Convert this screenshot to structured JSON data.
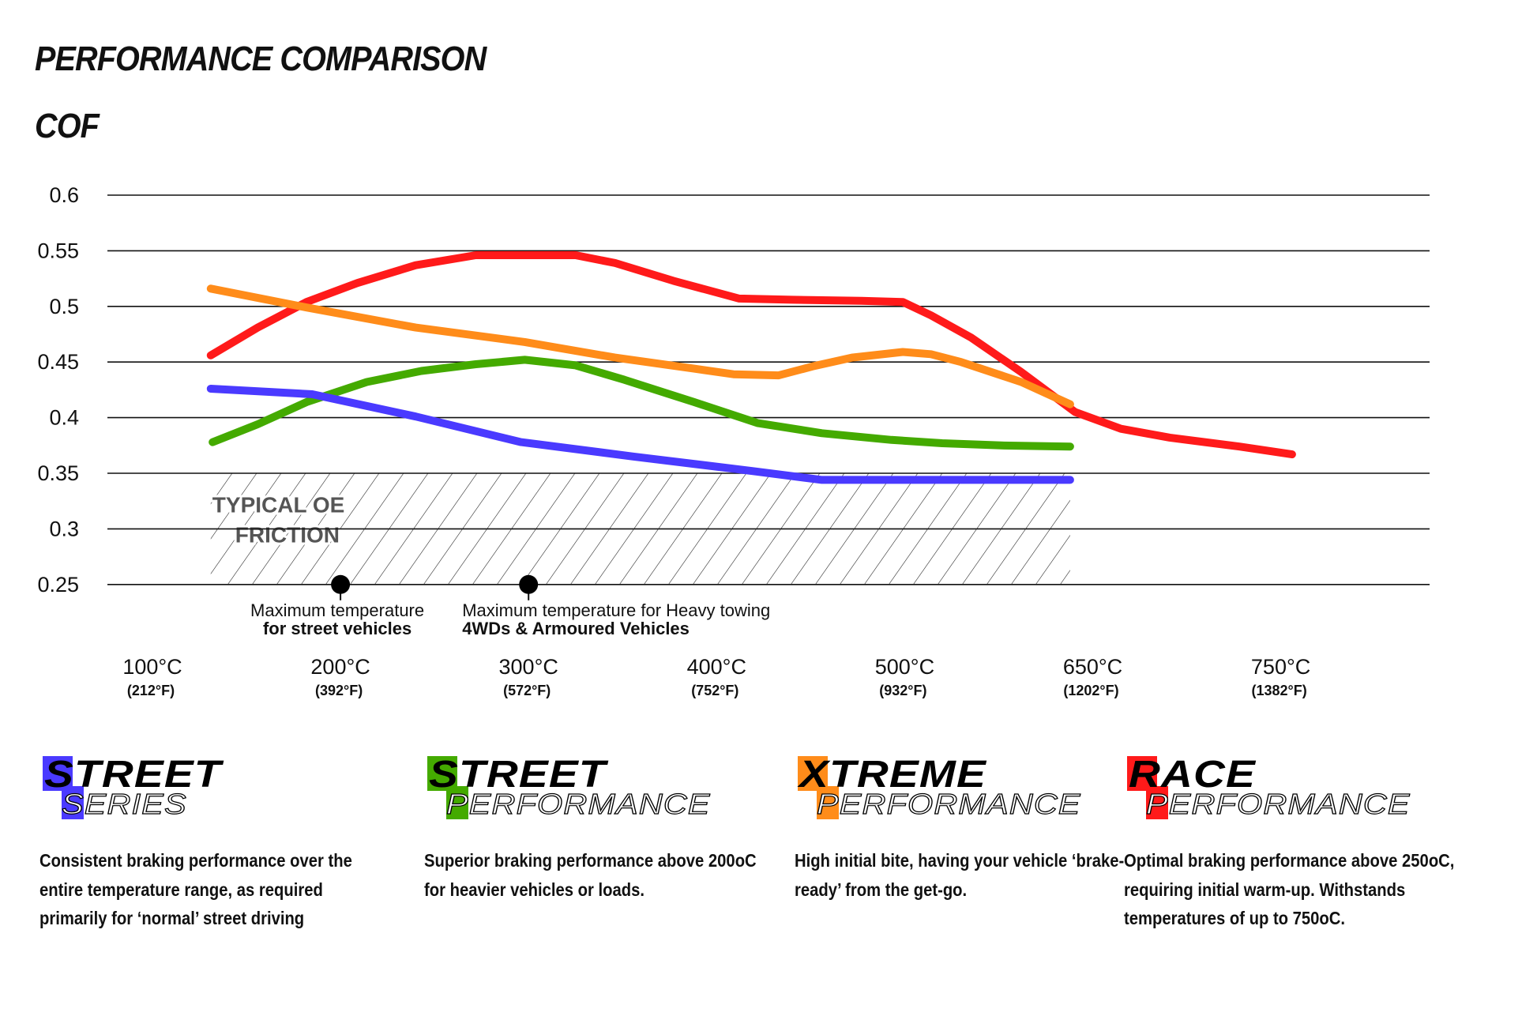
{
  "header": {
    "title": "PERFORMANCE COMPARISON",
    "subtitle": "COF"
  },
  "chart_data": {
    "type": "line",
    "title": "PERFORMANCE COMPARISON",
    "ylabel": "COF",
    "ylim": [
      0.25,
      0.6
    ],
    "yticks": [
      0.6,
      0.55,
      0.5,
      0.45,
      0.4,
      0.35,
      0.3,
      0.25
    ],
    "ytick_labels": [
      "0.6",
      "0.55",
      "0.5",
      "0.45",
      "0.4",
      "0.35",
      "0.3",
      "0.25"
    ],
    "grid": "horizontal",
    "x_unit": "°C",
    "xticks": [
      100,
      200,
      300,
      400,
      500,
      650,
      750
    ],
    "xtick_labels": [
      {
        "c": "100°C",
        "f": "(212°F)"
      },
      {
        "c": "200°C",
        "f": "(392°F)"
      },
      {
        "c": "300°C",
        "f": "(572°F)"
      },
      {
        "c": "400°C",
        "f": "(752°F)"
      },
      {
        "c": "500°C",
        "f": "(932°F)"
      },
      {
        "c": "650°C",
        "f": "(1202°F)"
      },
      {
        "c": "750°C",
        "f": "(1382°F)"
      }
    ],
    "series": [
      {
        "color": "#ff1a1a",
        "x": [
          131,
          156,
          182,
          209,
          240,
          272,
          303,
          325,
          346,
          377,
          412,
          440,
          477,
          499,
          521,
          553,
          593,
          636,
          665,
          691,
          728,
          756
        ],
        "y": [
          0.456,
          0.481,
          0.504,
          0.521,
          0.537,
          0.546,
          0.546,
          0.546,
          0.539,
          0.523,
          0.507,
          0.506,
          0.505,
          0.504,
          0.492,
          0.472,
          0.441,
          0.405,
          0.39,
          0.382,
          0.374,
          0.367
        ]
      },
      {
        "color": "#ff8c1a",
        "x": [
          131,
          182,
          240,
          298,
          346,
          388,
          409,
          433,
          451,
          472,
          499,
          521,
          545,
          593,
          632
        ],
        "y": [
          0.516,
          0.499,
          0.481,
          0.468,
          0.454,
          0.444,
          0.439,
          0.438,
          0.446,
          0.454,
          0.459,
          0.457,
          0.45,
          0.432,
          0.412
        ]
      },
      {
        "color": "#44aa00",
        "x": [
          132,
          156,
          182,
          214,
          243,
          272,
          298,
          325,
          351,
          388,
          422,
          456,
          493,
          530,
          577,
          632
        ],
        "y": [
          0.378,
          0.394,
          0.414,
          0.432,
          0.442,
          0.448,
          0.452,
          0.447,
          0.434,
          0.414,
          0.395,
          0.386,
          0.38,
          0.377,
          0.375,
          0.374
        ]
      },
      {
        "color": "#4a3aff",
        "x": [
          131,
          185,
          240,
          296,
          356,
          419,
          456,
          493,
          632
        ],
        "y": [
          0.426,
          0.421,
          0.401,
          0.378,
          0.365,
          0.352,
          0.344,
          0.344,
          0.344
        ]
      }
    ],
    "region": {
      "label_line1": "TYPICAL OE",
      "label_line2": "FRICTION",
      "x": [
        131,
        632
      ],
      "y": [
        0.25,
        0.35
      ],
      "fill": "hatched"
    },
    "annotations": [
      {
        "x": 200,
        "y": 0.25,
        "line1": "Maximum temperature",
        "line2": "for street vehicles"
      },
      {
        "x": 300,
        "y": 0.25,
        "line1": "Maximum temperature for Heavy towing",
        "line2": "4WDs & Armoured Vehicles"
      }
    ]
  },
  "products": [
    {
      "word1_first": "S",
      "word1_rest": "TREET",
      "word2_first": "S",
      "word2_rest": "ERIES",
      "color": "#4a3aff",
      "description": "Consistent braking performance over the entire temperature range, as required primarily for ‘normal’ street driving"
    },
    {
      "word1_first": "S",
      "word1_rest": "TREET",
      "word2_first": "P",
      "word2_rest": "ERFORMANCE",
      "color": "#44aa00",
      "description": "Superior braking performance above 200oC for heavier vehicles or loads."
    },
    {
      "word1_first": "X",
      "word1_rest": "TREME",
      "word2_first": "P",
      "word2_rest": "ERFORMANCE",
      "color": "#ff8c1a",
      "description": "High initial bite, having your vehicle ‘brake-ready’ from the get-go."
    },
    {
      "word1_first": "R",
      "word1_rest": "ACE",
      "word2_first": "P",
      "word2_rest": "ERFORMANCE",
      "color": "#ff1a1a",
      "description": "Optimal braking performance above 250oC, requiring initial warm-up. Withstands temperatures of up to 750oC."
    }
  ]
}
